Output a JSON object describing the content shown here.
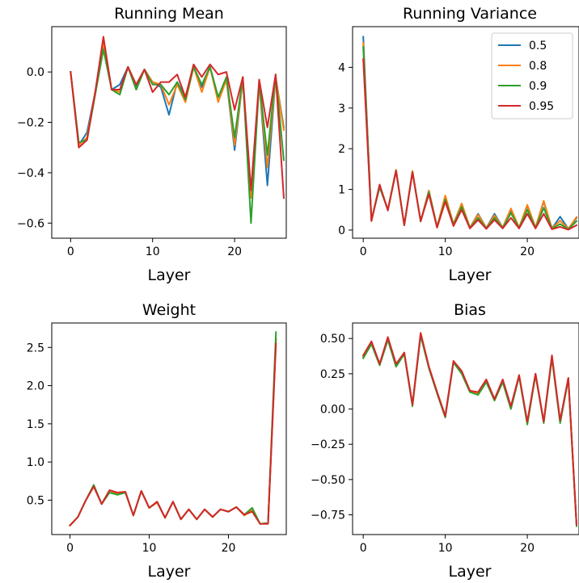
{
  "chart_data": [
    {
      "type": "line",
      "title": "Running Mean",
      "xlabel": "Layer",
      "ylabel": "",
      "xlim": [
        -2.3,
        26.3
      ],
      "ylim": [
        -0.66,
        0.18
      ],
      "xticks": [
        0,
        10,
        20
      ],
      "yticks": [
        -0.6,
        -0.4,
        -0.2,
        0.0
      ],
      "ytick_labels": [
        "−0.6",
        "−0.4",
        "−0.2",
        "0.0"
      ],
      "x": [
        0,
        1,
        2,
        3,
        4,
        5,
        6,
        7,
        8,
        9,
        10,
        11,
        12,
        13,
        14,
        15,
        16,
        17,
        18,
        19,
        20,
        21,
        22,
        23,
        24,
        25,
        26
      ],
      "series": [
        {
          "name": "0.5",
          "color": "#1f77b4",
          "values": [
            0.0,
            -0.29,
            -0.24,
            -0.08,
            0.12,
            -0.07,
            -0.05,
            0.02,
            -0.06,
            0.01,
            -0.04,
            -0.06,
            -0.17,
            -0.04,
            -0.1,
            0.02,
            -0.06,
            0.02,
            -0.1,
            -0.03,
            -0.31,
            -0.03,
            -0.5,
            -0.04,
            -0.45,
            -0.02,
            -0.22
          ]
        },
        {
          "name": "0.8",
          "color": "#ff7f0e",
          "values": [
            0.0,
            -0.29,
            -0.26,
            -0.08,
            0.11,
            -0.07,
            -0.08,
            0.02,
            -0.07,
            0.01,
            -0.04,
            -0.05,
            -0.13,
            -0.05,
            -0.12,
            0.02,
            -0.08,
            0.02,
            -0.12,
            -0.03,
            -0.29,
            -0.03,
            -0.5,
            -0.05,
            -0.38,
            -0.02,
            -0.23
          ]
        },
        {
          "name": "0.9",
          "color": "#2ca02c",
          "values": [
            0.0,
            -0.28,
            -0.27,
            -0.09,
            0.09,
            -0.07,
            -0.09,
            0.02,
            -0.07,
            0.01,
            -0.05,
            -0.05,
            -0.09,
            -0.04,
            -0.11,
            0.02,
            -0.05,
            0.02,
            -0.1,
            -0.02,
            -0.26,
            -0.02,
            -0.6,
            -0.04,
            -0.33,
            -0.01,
            -0.35
          ]
        },
        {
          "name": "0.95",
          "color": "#d62728",
          "values": [
            0.0,
            -0.3,
            -0.27,
            -0.08,
            0.14,
            -0.07,
            -0.07,
            0.02,
            -0.05,
            0.01,
            -0.08,
            -0.04,
            -0.04,
            -0.01,
            -0.1,
            0.03,
            -0.02,
            0.03,
            -0.01,
            0.0,
            -0.15,
            -0.02,
            -0.47,
            -0.03,
            -0.22,
            -0.01,
            -0.5
          ]
        }
      ]
    },
    {
      "type": "line",
      "title": "Running Variance",
      "xlabel": "Layer",
      "ylabel": "",
      "xlim": [
        -1.3,
        26.3
      ],
      "ylim": [
        -0.2,
        5.0
      ],
      "xticks": [
        0,
        10,
        20
      ],
      "yticks": [
        0,
        1,
        2,
        3,
        4
      ],
      "ytick_labels": [
        "0",
        "1",
        "2",
        "3",
        "4"
      ],
      "legend_placement": "top-right",
      "x": [
        0,
        1,
        2,
        3,
        4,
        5,
        6,
        7,
        8,
        9,
        10,
        11,
        12,
        13,
        14,
        15,
        16,
        17,
        18,
        19,
        20,
        21,
        22,
        23,
        24,
        25,
        26
      ],
      "series": [
        {
          "name": "0.5",
          "color": "#1f77b4",
          "values": [
            4.75,
            0.25,
            1.1,
            0.5,
            1.48,
            0.12,
            1.45,
            0.22,
            0.97,
            0.08,
            0.82,
            0.15,
            0.65,
            0.06,
            0.4,
            0.05,
            0.4,
            0.06,
            0.5,
            0.06,
            0.6,
            0.06,
            0.7,
            0.04,
            0.33,
            0.03,
            0.3
          ]
        },
        {
          "name": "0.8",
          "color": "#ff7f0e",
          "values": [
            4.6,
            0.25,
            1.1,
            0.5,
            1.48,
            0.12,
            1.45,
            0.22,
            0.97,
            0.08,
            0.85,
            0.15,
            0.65,
            0.06,
            0.38,
            0.05,
            0.36,
            0.06,
            0.53,
            0.06,
            0.62,
            0.06,
            0.72,
            0.04,
            0.23,
            0.03,
            0.32
          ]
        },
        {
          "name": "0.9",
          "color": "#2ca02c",
          "values": [
            4.5,
            0.24,
            1.05,
            0.5,
            1.46,
            0.12,
            1.42,
            0.21,
            0.93,
            0.07,
            0.75,
            0.13,
            0.57,
            0.05,
            0.3,
            0.04,
            0.3,
            0.05,
            0.42,
            0.05,
            0.5,
            0.05,
            0.55,
            0.03,
            0.15,
            0.02,
            0.22
          ]
        },
        {
          "name": "0.95",
          "color": "#d62728",
          "values": [
            4.2,
            0.22,
            1.12,
            0.48,
            1.45,
            0.12,
            1.42,
            0.22,
            0.88,
            0.06,
            0.7,
            0.1,
            0.5,
            0.04,
            0.25,
            0.03,
            0.25,
            0.04,
            0.3,
            0.04,
            0.4,
            0.04,
            0.4,
            0.02,
            0.08,
            0.01,
            0.12
          ]
        }
      ]
    },
    {
      "type": "line",
      "title": "Weight",
      "xlabel": "Layer",
      "ylabel": "",
      "xlim": [
        -2.3,
        27.3
      ],
      "ylim": [
        0.05,
        2.82
      ],
      "xticks": [
        0,
        10,
        20
      ],
      "yticks": [
        0.5,
        1.0,
        1.5,
        2.0,
        2.5
      ],
      "ytick_labels": [
        "0.5",
        "1.0",
        "1.5",
        "2.0",
        "2.5"
      ],
      "x": [
        0,
        1,
        2,
        3,
        4,
        5,
        6,
        7,
        8,
        9,
        10,
        11,
        12,
        13,
        14,
        15,
        16,
        17,
        18,
        19,
        20,
        21,
        22,
        23,
        24,
        25,
        26
      ],
      "series": [
        {
          "name": "0.5",
          "color": "#1f77b4",
          "values": [
            0.17,
            0.28,
            0.5,
            0.68,
            0.45,
            0.63,
            0.58,
            0.6,
            0.3,
            0.62,
            0.4,
            0.47,
            0.27,
            0.48,
            0.25,
            0.38,
            0.25,
            0.38,
            0.28,
            0.38,
            0.35,
            0.41,
            0.3,
            0.38,
            0.19,
            0.2,
            2.6
          ]
        },
        {
          "name": "0.8",
          "color": "#ff7f0e",
          "values": [
            0.17,
            0.28,
            0.5,
            0.68,
            0.45,
            0.63,
            0.58,
            0.6,
            0.3,
            0.62,
            0.4,
            0.47,
            0.27,
            0.48,
            0.25,
            0.38,
            0.25,
            0.38,
            0.28,
            0.38,
            0.35,
            0.41,
            0.3,
            0.38,
            0.19,
            0.2,
            2.62
          ]
        },
        {
          "name": "0.9",
          "color": "#2ca02c",
          "values": [
            0.17,
            0.28,
            0.5,
            0.7,
            0.45,
            0.6,
            0.57,
            0.6,
            0.3,
            0.62,
            0.4,
            0.48,
            0.27,
            0.48,
            0.25,
            0.38,
            0.25,
            0.38,
            0.28,
            0.38,
            0.35,
            0.41,
            0.31,
            0.4,
            0.19,
            0.2,
            2.7
          ]
        },
        {
          "name": "0.95",
          "color": "#d62728",
          "values": [
            0.17,
            0.28,
            0.5,
            0.68,
            0.45,
            0.63,
            0.6,
            0.61,
            0.3,
            0.62,
            0.4,
            0.48,
            0.27,
            0.48,
            0.25,
            0.38,
            0.25,
            0.38,
            0.28,
            0.38,
            0.35,
            0.41,
            0.31,
            0.35,
            0.19,
            0.19,
            2.55
          ]
        }
      ]
    },
    {
      "type": "line",
      "title": "Bias",
      "xlabel": "Layer",
      "ylabel": "",
      "xlim": [
        -1.3,
        26.3
      ],
      "ylim": [
        -0.89,
        0.61
      ],
      "xticks": [
        0,
        10,
        20
      ],
      "yticks": [
        -0.75,
        -0.5,
        -0.25,
        0.0,
        0.25,
        0.5
      ],
      "ytick_labels": [
        "−0.75",
        "−0.50",
        "−0.25",
        "0.00",
        "0.25",
        "0.50"
      ],
      "x": [
        0,
        1,
        2,
        3,
        4,
        5,
        6,
        7,
        8,
        9,
        10,
        11,
        12,
        13,
        14,
        15,
        16,
        17,
        18,
        19,
        20,
        21,
        22,
        23,
        24,
        25,
        26
      ],
      "series": [
        {
          "name": "0.5",
          "color": "#1f77b4",
          "values": [
            0.37,
            0.47,
            0.32,
            0.5,
            0.31,
            0.4,
            0.03,
            0.53,
            0.3,
            0.12,
            -0.05,
            0.34,
            0.26,
            0.13,
            0.11,
            0.2,
            0.07,
            0.2,
            0.01,
            0.24,
            -0.1,
            0.25,
            -0.09,
            0.37,
            -0.09,
            0.22,
            -0.82
          ]
        },
        {
          "name": "0.8",
          "color": "#ff7f0e",
          "values": [
            0.37,
            0.47,
            0.32,
            0.5,
            0.31,
            0.4,
            0.03,
            0.53,
            0.3,
            0.12,
            -0.05,
            0.34,
            0.26,
            0.13,
            0.11,
            0.2,
            0.07,
            0.2,
            0.01,
            0.24,
            -0.1,
            0.25,
            -0.09,
            0.37,
            -0.09,
            0.22,
            -0.82
          ]
        },
        {
          "name": "0.9",
          "color": "#2ca02c",
          "values": [
            0.36,
            0.46,
            0.31,
            0.49,
            0.3,
            0.39,
            0.02,
            0.52,
            0.29,
            0.11,
            -0.06,
            0.33,
            0.25,
            0.12,
            0.1,
            0.19,
            0.06,
            0.19,
            0.0,
            0.23,
            -0.11,
            0.24,
            -0.1,
            0.36,
            -0.1,
            0.21,
            -0.83
          ]
        },
        {
          "name": "0.95",
          "color": "#d62728",
          "values": [
            0.38,
            0.48,
            0.32,
            0.51,
            0.32,
            0.4,
            0.03,
            0.54,
            0.3,
            0.12,
            -0.05,
            0.34,
            0.27,
            0.13,
            0.12,
            0.21,
            0.07,
            0.21,
            0.02,
            0.24,
            -0.09,
            0.25,
            -0.09,
            0.38,
            -0.08,
            0.22,
            -0.82
          ]
        }
      ]
    }
  ]
}
